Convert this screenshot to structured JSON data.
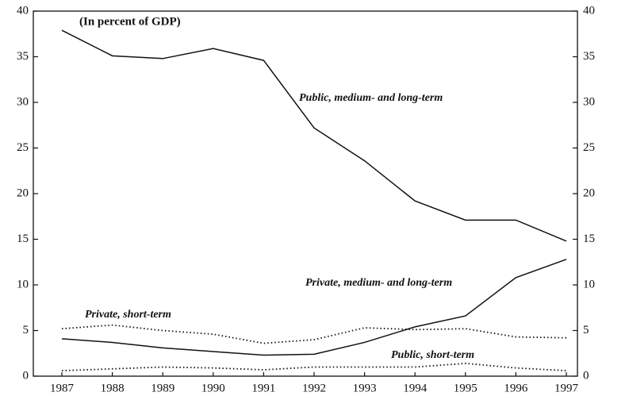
{
  "chart_data": {
    "type": "line",
    "annotation": "(In percent of GDP)",
    "categories": [
      "1987",
      "1988",
      "1989",
      "1990",
      "1991",
      "1992",
      "1993",
      "1994",
      "1995",
      "1996",
      "1997"
    ],
    "series": [
      {
        "name": "Public, medium- and long-term",
        "color": "#111111",
        "style": "solid",
        "values": [
          37.9,
          35.1,
          34.8,
          35.9,
          34.6,
          27.2,
          23.6,
          19.2,
          17.1,
          17.1,
          14.8
        ]
      },
      {
        "name": "Private, medium- and long-term",
        "color": "#111111",
        "style": "solid",
        "values": [
          4.1,
          3.7,
          3.1,
          2.7,
          2.3,
          2.4,
          3.7,
          5.4,
          6.6,
          10.8,
          12.8
        ]
      },
      {
        "name": "Private, short-term",
        "color": "#111111",
        "style": "dotted",
        "values": [
          5.2,
          5.6,
          5.0,
          4.6,
          3.6,
          4.0,
          5.3,
          5.1,
          5.2,
          4.3,
          4.2
        ]
      },
      {
        "name": "Public, short-term",
        "color": "#111111",
        "style": "dotted",
        "values": [
          0.6,
          0.8,
          1.0,
          0.9,
          0.7,
          1.0,
          1.0,
          1.0,
          1.4,
          0.9,
          0.6
        ]
      }
    ],
    "ylim": [
      0,
      40
    ],
    "yticks": [
      0,
      5,
      10,
      15,
      20,
      25,
      30,
      35,
      40
    ],
    "y2lim": [
      0,
      40
    ],
    "y2ticks": [
      0,
      5,
      10,
      15,
      20,
      25,
      30,
      35,
      40
    ]
  }
}
